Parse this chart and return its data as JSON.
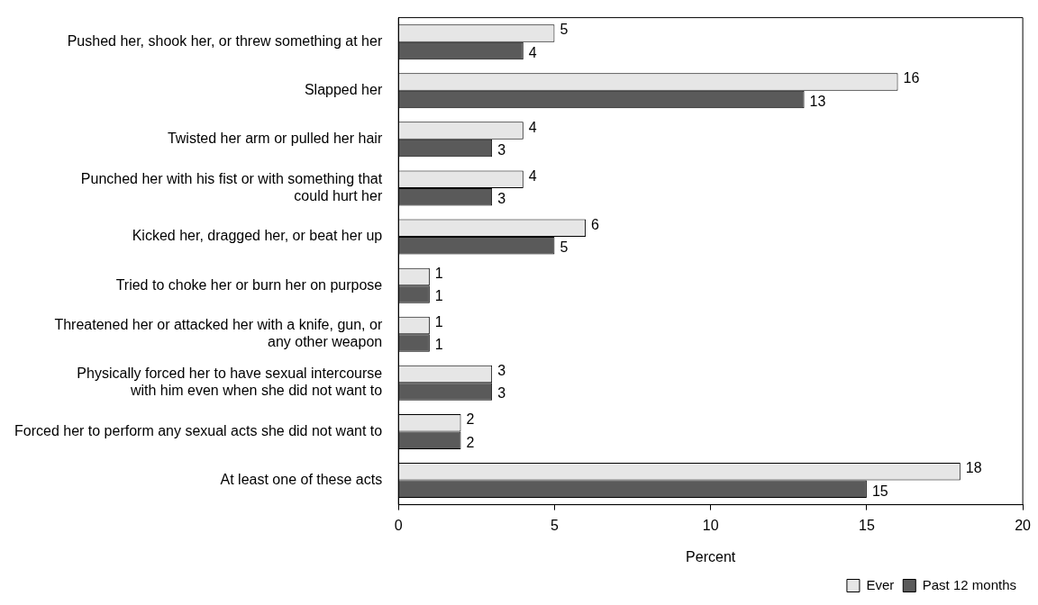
{
  "chart_data": {
    "type": "bar",
    "orientation": "horizontal",
    "xlabel": "Percent",
    "categories": [
      "Pushed her, shook her, or threw something at her",
      "Slapped her",
      "Twisted her arm or pulled her hair",
      "Punched her with his fist or with something that\ncould hurt her",
      "Kicked her, dragged her, or beat her up",
      "Tried to choke her or burn her on purpose",
      "Threatened her or attacked her with a knife, gun, or\nany other weapon",
      "Physically forced her to have sexual intercourse\nwith him even when she did not want to",
      "Forced her to perform any sexual acts she did not want to",
      "At least one of these acts"
    ],
    "series": [
      {
        "name": "Ever",
        "color": "#e6e6e6",
        "values": [
          5,
          16,
          4,
          4,
          6,
          1,
          1,
          3,
          2,
          18
        ]
      },
      {
        "name": "Past 12 months",
        "color": "#5a5a5a",
        "values": [
          4,
          13,
          3,
          3,
          5,
          1,
          1,
          3,
          2,
          15
        ]
      }
    ],
    "xlim": [
      0,
      20
    ],
    "xticks": [
      0,
      5,
      10,
      15,
      20
    ],
    "grid": false,
    "legend": "bottom",
    "data_labels": true
  }
}
